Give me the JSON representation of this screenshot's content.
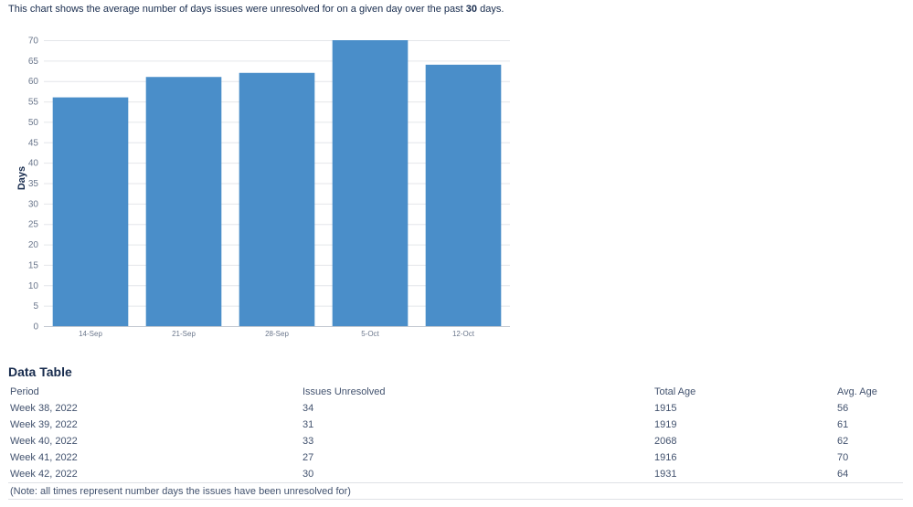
{
  "intro": {
    "text_before": "This chart shows the average number of days issues were unresolved for on a given day over the past ",
    "days": "30",
    "text_after": " days."
  },
  "chart_data": {
    "type": "bar",
    "categories": [
      "14-Sep",
      "21-Sep",
      "28-Sep",
      "5-Oct",
      "12-Oct"
    ],
    "values": [
      56,
      61,
      62,
      70,
      64
    ],
    "xlabel": "",
    "ylabel": "Days",
    "ylim": [
      0,
      70
    ],
    "yticks": [
      0,
      5,
      10,
      15,
      20,
      25,
      30,
      35,
      40,
      45,
      50,
      55,
      60,
      65,
      70
    ],
    "grid": true,
    "bar_color": "#4a8ec9"
  },
  "table": {
    "title": "Data Table",
    "headers": [
      "Period",
      "Issues Unresolved",
      "Total Age",
      "Avg. Age"
    ],
    "rows": [
      [
        "Week 38, 2022",
        "34",
        "1915",
        "56"
      ],
      [
        "Week 39, 2022",
        "31",
        "1919",
        "61"
      ],
      [
        "Week 40, 2022",
        "33",
        "2068",
        "62"
      ],
      [
        "Week 41, 2022",
        "27",
        "1916",
        "70"
      ],
      [
        "Week 42, 2022",
        "30",
        "1931",
        "64"
      ]
    ],
    "note": "(Note: all times represent number days the issues have been unresolved for)"
  }
}
